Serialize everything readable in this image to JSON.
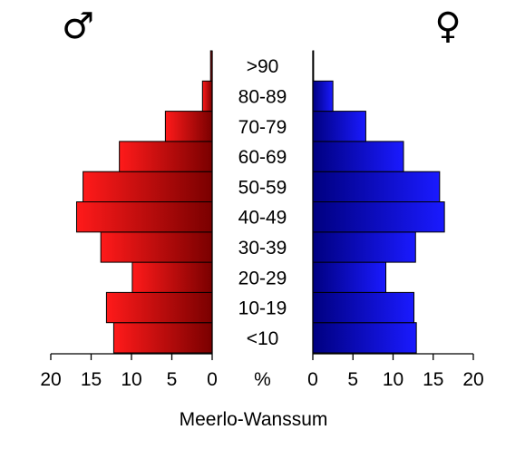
{
  "chart_data": {
    "type": "bar",
    "orientation": "horizontal-population-pyramid",
    "title": "Meerlo-Wanssum",
    "unit_label": "%",
    "categories": [
      "<10",
      "10-19",
      "20-29",
      "30-39",
      "40-49",
      "50-59",
      "60-69",
      "70-79",
      "80-89",
      ">90"
    ],
    "series": [
      {
        "name": "♂",
        "side": "left",
        "values": [
          12.2,
          13.1,
          9.9,
          13.8,
          16.8,
          16.0,
          11.5,
          5.8,
          1.2,
          0.2
        ],
        "color_light": "#ff1a1a",
        "color_dark": "#7a0000"
      },
      {
        "name": "♀",
        "side": "right",
        "values": [
          12.9,
          12.6,
          9.1,
          12.8,
          16.4,
          15.8,
          11.3,
          6.6,
          2.5,
          0.1
        ],
        "color_light": "#1a1aff",
        "color_dark": "#000080"
      }
    ],
    "xlim": [
      0,
      20
    ],
    "x_ticks": [
      "20",
      "15",
      "10",
      "5",
      "0",
      "0",
      "5",
      "10",
      "15",
      "20"
    ],
    "grid": false,
    "legend": "symbols-top"
  }
}
